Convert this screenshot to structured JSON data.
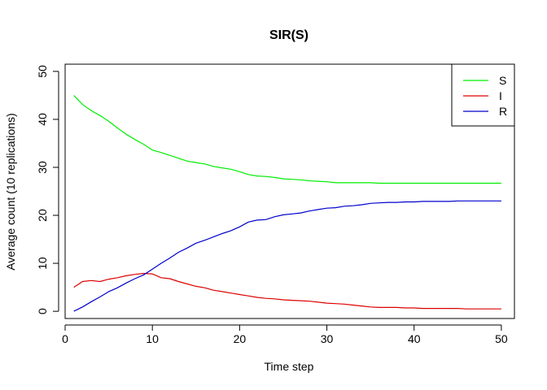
{
  "chart_data": {
    "type": "line",
    "title": "SIR(S)",
    "xlabel": "Time step",
    "ylabel": "Average count (10 replications)",
    "xlim": [
      0,
      51.5
    ],
    "ylim": [
      -1.5,
      51.5
    ],
    "xticks": [
      0,
      10,
      20,
      30,
      40,
      50
    ],
    "yticks": [
      0,
      10,
      20,
      30,
      40,
      50
    ],
    "legend_position": "top-right",
    "x": [
      1,
      2,
      3,
      4,
      5,
      6,
      7,
      8,
      9,
      10,
      11,
      12,
      13,
      14,
      15,
      16,
      17,
      18,
      19,
      20,
      21,
      22,
      23,
      24,
      25,
      26,
      27,
      28,
      29,
      30,
      31,
      32,
      33,
      34,
      35,
      36,
      37,
      38,
      39,
      40,
      41,
      42,
      43,
      44,
      45,
      46,
      47,
      48,
      49,
      50
    ],
    "series": [
      {
        "name": "S",
        "color": "#00ee00",
        "values": [
          45.0,
          43.1,
          41.8,
          40.8,
          39.6,
          38.2,
          36.9,
          35.8,
          34.8,
          33.6,
          33.1,
          32.5,
          31.9,
          31.3,
          31.0,
          30.7,
          30.2,
          29.9,
          29.6,
          29.1,
          28.5,
          28.2,
          28.1,
          27.9,
          27.6,
          27.5,
          27.4,
          27.2,
          27.1,
          27.0,
          26.8,
          26.8,
          26.8,
          26.8,
          26.8,
          26.7,
          26.7,
          26.7,
          26.7,
          26.7,
          26.7,
          26.7,
          26.7,
          26.7,
          26.7,
          26.7,
          26.7,
          26.7,
          26.7,
          26.7
        ]
      },
      {
        "name": "I",
        "color": "#dd0000",
        "values": [
          5.0,
          6.2,
          6.4,
          6.2,
          6.7,
          7.0,
          7.4,
          7.7,
          7.9,
          7.8,
          7.0,
          6.8,
          6.2,
          5.7,
          5.2,
          4.9,
          4.4,
          4.1,
          3.8,
          3.5,
          3.2,
          2.9,
          2.7,
          2.6,
          2.4,
          2.3,
          2.2,
          2.1,
          1.9,
          1.7,
          1.6,
          1.5,
          1.3,
          1.1,
          0.9,
          0.8,
          0.8,
          0.8,
          0.7,
          0.7,
          0.6,
          0.6,
          0.6,
          0.6,
          0.6,
          0.5,
          0.5,
          0.5,
          0.5,
          0.5
        ]
      },
      {
        "name": "R",
        "color": "#0000cc",
        "values": [
          0.0,
          0.9,
          2.0,
          3.0,
          4.1,
          4.9,
          5.9,
          6.8,
          7.6,
          8.8,
          10.0,
          11.1,
          12.3,
          13.2,
          14.2,
          14.8,
          15.5,
          16.2,
          16.8,
          17.6,
          18.6,
          19.0,
          19.1,
          19.7,
          20.1,
          20.3,
          20.5,
          20.9,
          21.2,
          21.5,
          21.6,
          21.9,
          22.0,
          22.2,
          22.5,
          22.6,
          22.7,
          22.7,
          22.8,
          22.8,
          22.9,
          22.9,
          22.9,
          22.9,
          23.0,
          23.0,
          23.0,
          23.0,
          23.0,
          23.0
        ]
      }
    ]
  }
}
